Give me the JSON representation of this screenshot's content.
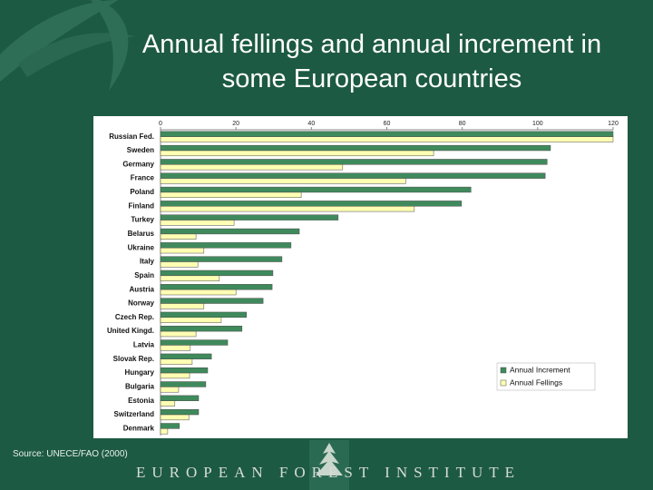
{
  "chart_data": {
    "type": "bar",
    "orientation": "horizontal",
    "title": "Annual fellings and annual increment in some European countries",
    "source": "Source: UNECE/FAO (2000)",
    "footer": "EUROPEAN FOREST INSTITUTE",
    "categories": [
      "Russian Fed.",
      "Sweden",
      "Germany",
      "France",
      "Poland",
      "Finland",
      "Turkey",
      "Belarus",
      "Ukraine",
      "Italy",
      "Spain",
      "Austria",
      "Norway",
      "Czech Rep.",
      "United Kingd.",
      "Latvia",
      "Slovak Rep.",
      "Hungary",
      "Bulgaria",
      "Estonia",
      "Switzerland",
      "Denmark"
    ],
    "series": [
      {
        "name": "Annual Increment",
        "color": "#3f8a5c",
        "values": [
          120,
          103.4,
          102.5,
          102,
          82.3,
          79.8,
          47.1,
          36.8,
          34.6,
          32.2,
          29.8,
          29.6,
          27.2,
          22.8,
          21.6,
          17.8,
          13.5,
          12.5,
          12,
          10.1,
          10.1,
          5
        ]
      },
      {
        "name": "Annual Fellings",
        "color": "#ffffb3",
        "values": [
          120,
          72.4,
          48.3,
          65,
          37.3,
          67.3,
          19.5,
          9.4,
          11.5,
          9.9,
          15.6,
          20,
          11.5,
          16.1,
          9.4,
          7.9,
          8.4,
          7.7,
          4.8,
          3.8,
          7.5,
          1.9
        ]
      }
    ],
    "xlim": [
      0,
      120
    ],
    "xticks": [
      0,
      20,
      40,
      60,
      80,
      100,
      120
    ],
    "legend": "lower right"
  }
}
